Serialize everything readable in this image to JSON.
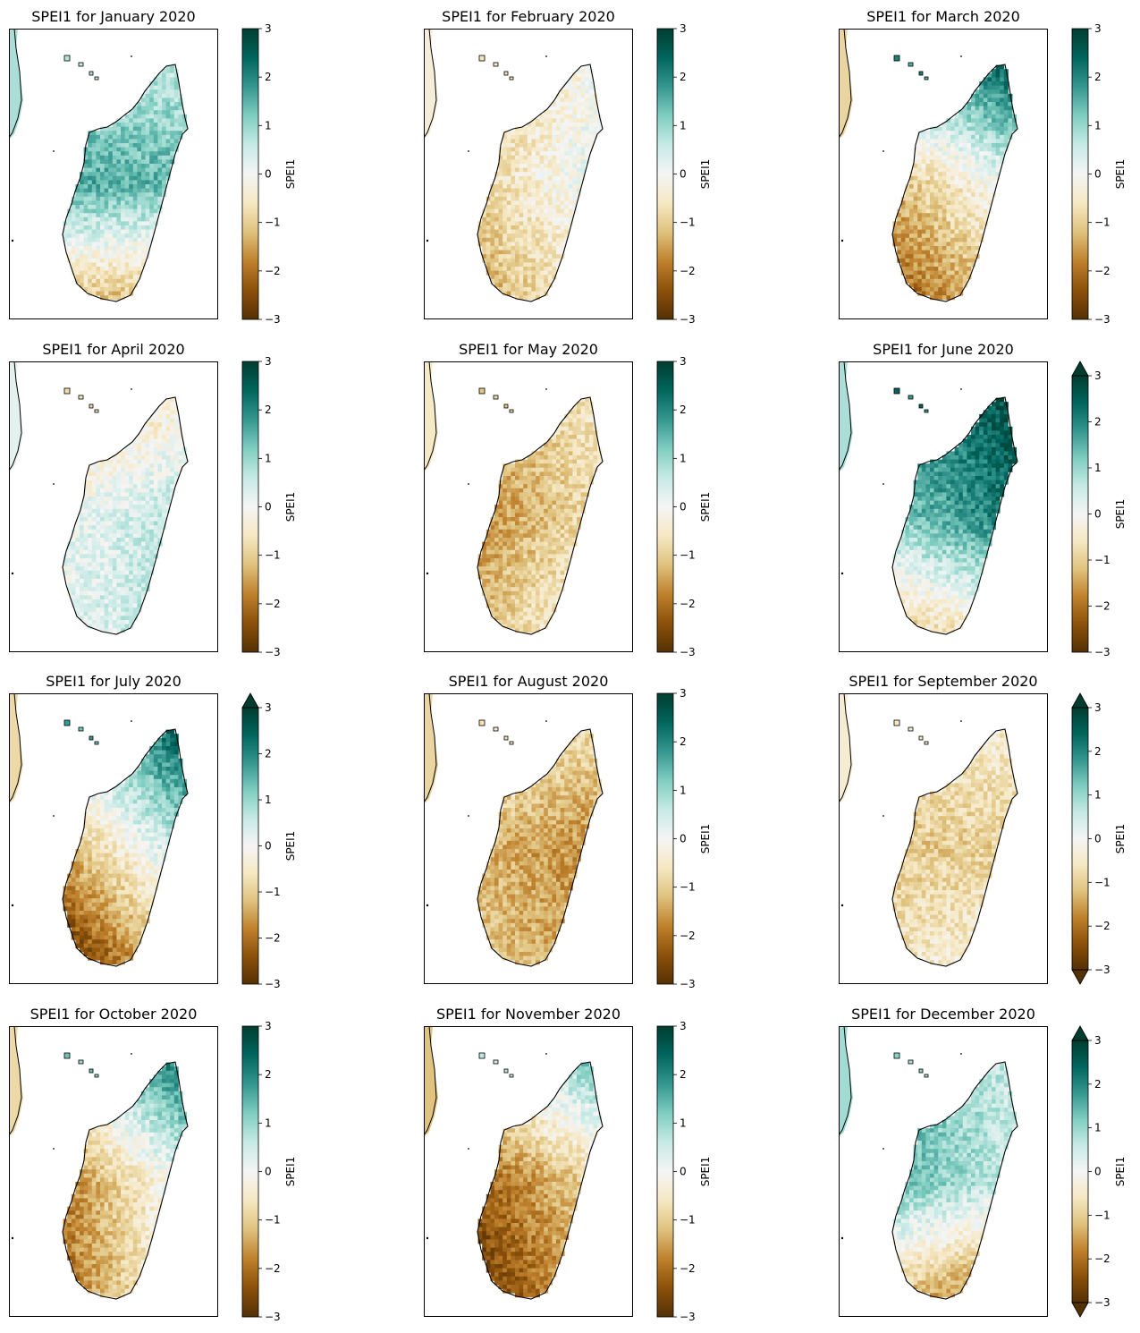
{
  "chart_data": {
    "type": "heatmap",
    "layout": {
      "rows": 4,
      "columns": 3
    },
    "colormap": {
      "name": "BrBG",
      "stops": [
        "#543005",
        "#8c510a",
        "#bf812d",
        "#dfc27d",
        "#f6e8c3",
        "#f5f5f5",
        "#c7eae5",
        "#80cdc1",
        "#35978f",
        "#01665e",
        "#003c30"
      ]
    },
    "value_range": [
      -3,
      3
    ],
    "colorbar_label": "SPEI1",
    "colorbar_ticks": [
      3,
      2,
      1,
      0,
      -1,
      -2,
      -3
    ],
    "colorbar_tick_labels": [
      "3",
      "2",
      "1",
      "0",
      "−1",
      "−2",
      "−3"
    ],
    "panels": [
      {
        "title": "SPEI1 for January 2020",
        "extend": "neither",
        "north": 0.7,
        "center": 1.5,
        "south": -1.3,
        "west": 1.2,
        "east": 1.0
      },
      {
        "title": "SPEI1 for February 2020",
        "extend": "neither",
        "north": -0.6,
        "center": -0.3,
        "south": -0.9,
        "west": -0.5,
        "east": 0.8
      },
      {
        "title": "SPEI1 for March 2020",
        "extend": "neither",
        "north": 1.9,
        "center": -0.5,
        "south": -1.6,
        "west": -1.3,
        "east": 0.3
      },
      {
        "title": "SPEI1 for April 2020",
        "extend": "neither",
        "north": -0.7,
        "center": 0.4,
        "south": 0.5,
        "west": 0.3,
        "east": 1.0
      },
      {
        "title": "SPEI1 for May 2020",
        "extend": "neither",
        "north": -1.0,
        "center": -1.2,
        "south": -0.6,
        "west": -0.8,
        "east": 0.3
      },
      {
        "title": "SPEI1 for June 2020",
        "extend": "max",
        "north": 2.2,
        "center": 1.7,
        "south": -0.7,
        "west": 1.2,
        "east": 2.4
      },
      {
        "title": "SPEI1 for July 2020",
        "extend": "max",
        "north": 1.6,
        "center": -0.3,
        "south": -1.9,
        "west": -1.2,
        "east": 1.2
      },
      {
        "title": "SPEI1 for August 2020",
        "extend": "neither",
        "north": -0.6,
        "center": -1.5,
        "south": -1.3,
        "west": -1.3,
        "east": -1.8
      },
      {
        "title": "SPEI1 for September 2020",
        "extend": "both",
        "north": -0.5,
        "center": -1.0,
        "south": -0.4,
        "west": -0.6,
        "east": -0.4
      },
      {
        "title": "SPEI1 for October 2020",
        "extend": "neither",
        "north": 1.2,
        "center": -0.8,
        "south": -1.0,
        "west": -1.2,
        "east": 1.2
      },
      {
        "title": "SPEI1 for November 2020",
        "extend": "neither",
        "north": 0.6,
        "center": -1.5,
        "south": -2.0,
        "west": -1.7,
        "east": 0.0
      },
      {
        "title": "SPEI1 for December 2020",
        "extend": "both",
        "north": 1.0,
        "center": 1.0,
        "south": -1.7,
        "west": 1.3,
        "east": 0.2
      }
    ]
  }
}
